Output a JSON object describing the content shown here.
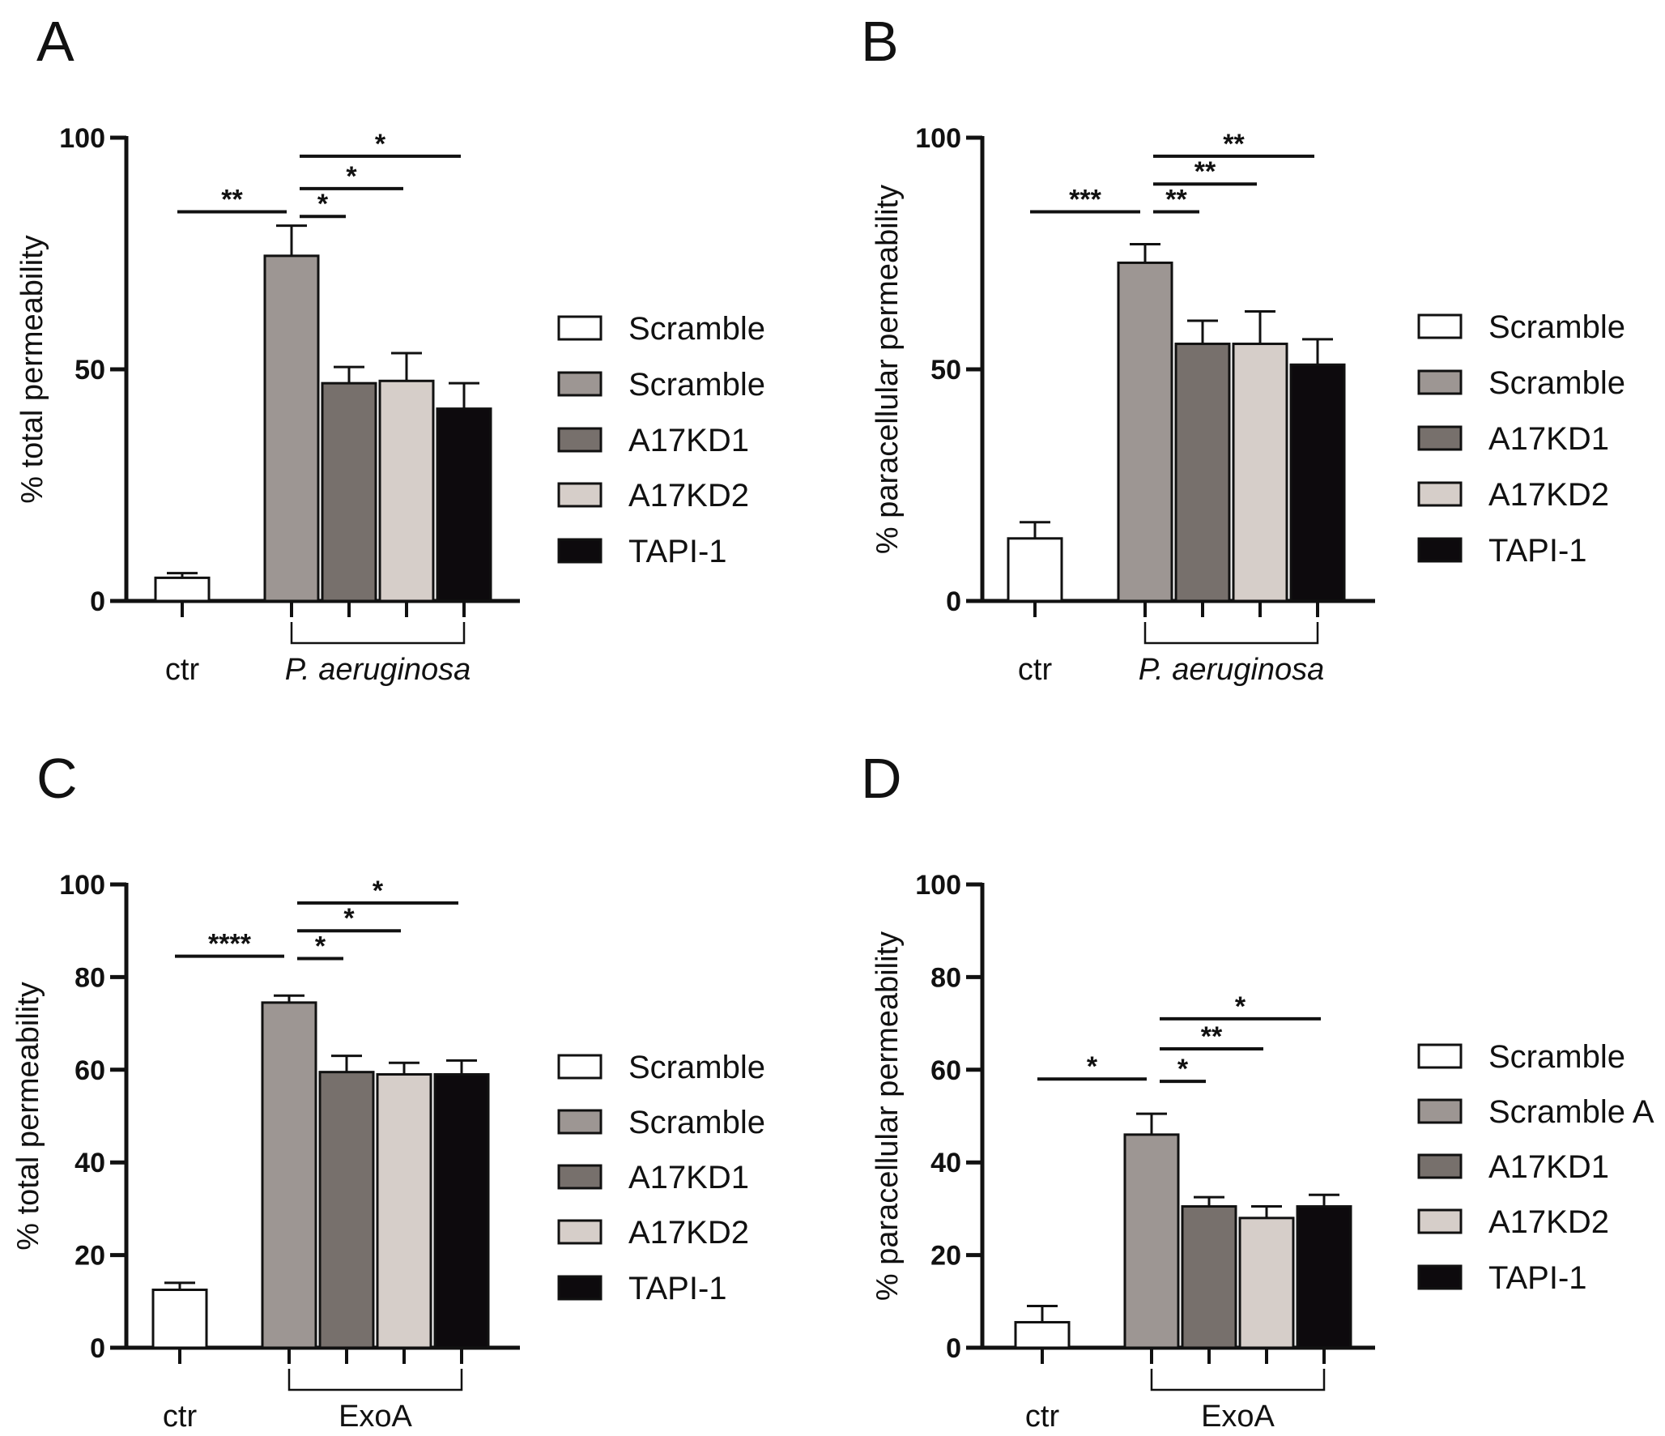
{
  "colors": {
    "Scramble_ctr": "#ffffff",
    "Scramble_infected": "#9d9693",
    "A17KD1": "#77706c",
    "A17KD2": "#d6cec9",
    "TAPI-1": "#0d0a0d",
    "axis": "#111111"
  },
  "chart_data": [
    {
      "panel": "A",
      "type": "bar",
      "ylabel": "% total permeability",
      "ylim": [
        0,
        100
      ],
      "yticks": [
        "0",
        "50",
        "100"
      ],
      "groups": [
        "ctr",
        "P. aeruginosa"
      ],
      "legend": [
        "Scramble",
        "Scramble",
        "A17KD1",
        "A17KD2",
        "TAPI-1"
      ],
      "bars": [
        {
          "series": "Scramble",
          "group": "ctr",
          "value": 5,
          "error": 1
        },
        {
          "series": "Scramble",
          "group": "P. aeruginosa",
          "value": 74.5,
          "error": 6.5
        },
        {
          "series": "A17KD1",
          "group": "P. aeruginosa",
          "value": 47,
          "error": 3.5
        },
        {
          "series": "A17KD2",
          "group": "P. aeruginosa",
          "value": 47.5,
          "error": 6
        },
        {
          "series": "TAPI-1",
          "group": "P. aeruginosa",
          "value": 41.5,
          "error": 5.5
        }
      ],
      "significance": [
        {
          "label": "**",
          "from": 0,
          "to": 1,
          "y": 84
        },
        {
          "label": "*",
          "from": 1,
          "to": 2,
          "y": 83
        },
        {
          "label": "*",
          "from": 1,
          "to": 3,
          "y": 89
        },
        {
          "label": "*",
          "from": 1,
          "to": 4,
          "y": 96
        }
      ]
    },
    {
      "panel": "B",
      "type": "bar",
      "ylabel": "% paracellular permeability",
      "ylim": [
        0,
        100
      ],
      "yticks": [
        "0",
        "50",
        "100"
      ],
      "groups": [
        "ctr",
        "P. aeruginosa"
      ],
      "legend": [
        "Scramble",
        "Scramble",
        "A17KD1",
        "A17KD2",
        "TAPI-1"
      ],
      "bars": [
        {
          "series": "Scramble",
          "group": "ctr",
          "value": 13.5,
          "error": 3.5
        },
        {
          "series": "Scramble",
          "group": "P. aeruginosa",
          "value": 73,
          "error": 4
        },
        {
          "series": "A17KD1",
          "group": "P. aeruginosa",
          "value": 55.5,
          "error": 5
        },
        {
          "series": "A17KD2",
          "group": "P. aeruginosa",
          "value": 55.5,
          "error": 7
        },
        {
          "series": "TAPI-1",
          "group": "P. aeruginosa",
          "value": 51,
          "error": 5.5
        }
      ],
      "significance": [
        {
          "label": "***",
          "from": 0,
          "to": 1,
          "y": 84
        },
        {
          "label": "**",
          "from": 1,
          "to": 2,
          "y": 84
        },
        {
          "label": "**",
          "from": 1,
          "to": 3,
          "y": 90
        },
        {
          "label": "**",
          "from": 1,
          "to": 4,
          "y": 96
        }
      ]
    },
    {
      "panel": "C",
      "type": "bar",
      "ylabel": "% total permeability",
      "ylim": [
        0,
        100
      ],
      "yticks": [
        "0",
        "20",
        "40",
        "60",
        "80",
        "100"
      ],
      "groups": [
        "ctr",
        "ExoA"
      ],
      "legend": [
        "Scramble",
        "Scramble",
        "A17KD1",
        "A17KD2",
        "TAPI-1"
      ],
      "bars": [
        {
          "series": "Scramble",
          "group": "ctr",
          "value": 12.5,
          "error": 1.5
        },
        {
          "series": "Scramble",
          "group": "ExoA",
          "value": 74.5,
          "error": 1.5
        },
        {
          "series": "A17KD1",
          "group": "ExoA",
          "value": 59.5,
          "error": 3.5
        },
        {
          "series": "A17KD2",
          "group": "ExoA",
          "value": 59,
          "error": 2.5
        },
        {
          "series": "TAPI-1",
          "group": "ExoA",
          "value": 59,
          "error": 3
        }
      ],
      "significance": [
        {
          "label": "****",
          "from": 0,
          "to": 1,
          "y": 84.5
        },
        {
          "label": "*",
          "from": 1,
          "to": 2,
          "y": 84
        },
        {
          "label": "*",
          "from": 1,
          "to": 3,
          "y": 90
        },
        {
          "label": "*",
          "from": 1,
          "to": 4,
          "y": 96
        }
      ]
    },
    {
      "panel": "D",
      "type": "bar",
      "ylabel": "% paracellular permeability",
      "ylim": [
        0,
        100
      ],
      "yticks": [
        "0",
        "20",
        "40",
        "60",
        "80",
        "100"
      ],
      "groups": [
        "ctr",
        "ExoA"
      ],
      "legend": [
        "Scramble",
        "Scramble A",
        "A17KD1",
        "A17KD2",
        "TAPI-1"
      ],
      "bars": [
        {
          "series": "Scramble",
          "group": "ctr",
          "value": 5.5,
          "error": 3.5
        },
        {
          "series": "Scramble",
          "group": "ExoA",
          "value": 46,
          "error": 4.5
        },
        {
          "series": "A17KD1",
          "group": "ExoA",
          "value": 30.5,
          "error": 2
        },
        {
          "series": "A17KD2",
          "group": "ExoA",
          "value": 28,
          "error": 2.5
        },
        {
          "series": "TAPI-1",
          "group": "ExoA",
          "value": 30.5,
          "error": 2.5
        }
      ],
      "significance": [
        {
          "label": "*",
          "from": 0,
          "to": 1,
          "y": 58
        },
        {
          "label": "*",
          "from": 1,
          "to": 2,
          "y": 57.5
        },
        {
          "label": "**",
          "from": 1,
          "to": 3,
          "y": 64.5
        },
        {
          "label": "*",
          "from": 1,
          "to": 4,
          "y": 71
        }
      ]
    }
  ]
}
